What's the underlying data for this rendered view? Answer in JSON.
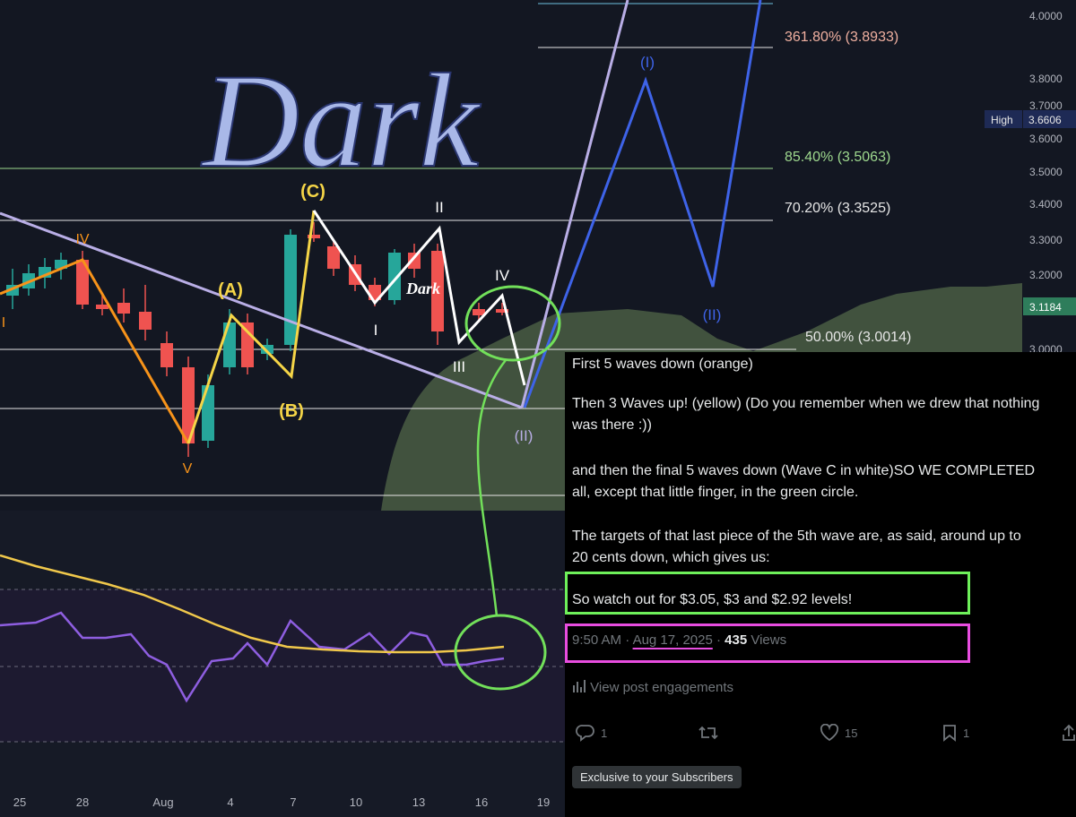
{
  "watermark": "Dark",
  "chart": {
    "price_axis": [
      "4.0000",
      "3.8000",
      "3.7000",
      "3.6000",
      "3.5000",
      "3.4000",
      "3.3000",
      "3.2000",
      "3.0000"
    ],
    "high_label": "High",
    "high_value": "3.6606",
    "current_value": "3.1184",
    "x_axis": [
      "25",
      "28",
      "Aug",
      "4",
      "7",
      "10",
      "13",
      "16",
      "19"
    ],
    "fib_levels": [
      {
        "label": "361.80% (3.8933)",
        "color": "#f0b0a0"
      },
      {
        "label": "85.40% (3.5063)",
        "color": "#9ed88e"
      },
      {
        "label": "70.20% (3.3525)",
        "color": "#e6e6e6"
      },
      {
        "label": "50.00% (3.0014)",
        "color": "#e6e6e6"
      }
    ],
    "wave_labels": {
      "orange": [
        "I",
        "IV",
        "V"
      ],
      "yellow": [
        "(A)",
        "(B)",
        "(C)"
      ],
      "white": [
        "I",
        "II",
        "III",
        "IV",
        "(II)"
      ],
      "blue": [
        "(I)",
        "(II)"
      ],
      "inline_mark": "Dark"
    },
    "colors": {
      "background": "#131722",
      "up_candle": "#26a69a",
      "down_candle": "#ef5350",
      "orange_wave": "#f7931a",
      "yellow_wave": "#f5d547",
      "blue_wave": "#3e63e8",
      "trendline": "#b9aee6",
      "cloud": "#4e6146",
      "rsi": "#8e5ee0",
      "rsi_ma": "#f0c84b",
      "circle": "#72e05a"
    }
  },
  "post": {
    "paragraphs": [
      "First 5 waves down (orange)",
      "Then 3 Waves up! (yellow) (Do you remember when we drew that nothing",
      "was there :))",
      "and then the final 5 waves down (Wave C in white)SO WE COMPLETED",
      "all, except that little finger, in the green circle.",
      "The targets of that last piece of the 5th wave are, as said, around up to",
      "20 cents down, which gives us:",
      "So watch out for $3.05, $3 and $2.92 levels!"
    ],
    "time": "9:50 AM",
    "date": "Aug 17, 2025",
    "views_count": "435",
    "views_label": "Views",
    "engagements_link": "View post engagements",
    "replies": "1",
    "likes": "15",
    "bookmarks": "1",
    "exclusive_badge": "Exclusive to your Subscribers"
  }
}
